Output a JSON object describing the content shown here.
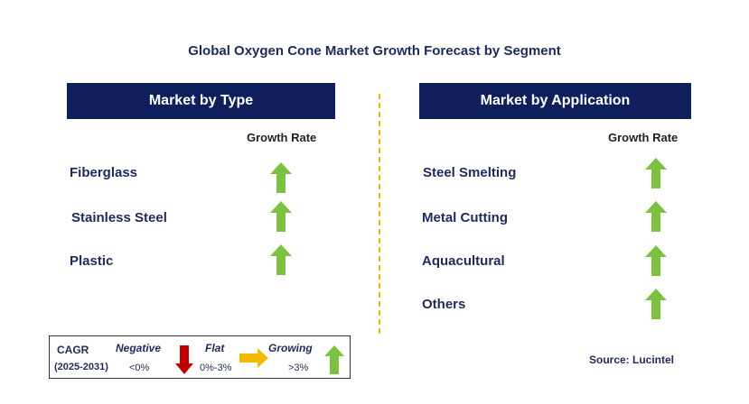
{
  "title": "Global Oxygen Cone Market Growth Forecast by Segment",
  "left_panel": {
    "header": "Market by Type",
    "growth_rate_label": "Growth Rate",
    "items": [
      {
        "label": "Fiberglass",
        "trend": "growing"
      },
      {
        "label": "Stainless Steel",
        "trend": "growing"
      },
      {
        "label": "Plastic",
        "trend": "growing"
      }
    ]
  },
  "right_panel": {
    "header": "Market by Application",
    "growth_rate_label": "Growth Rate",
    "items": [
      {
        "label": "Steel Smelting",
        "trend": "growing"
      },
      {
        "label": "Metal Cutting",
        "trend": "growing"
      },
      {
        "label": "Aquacultural",
        "trend": "growing"
      },
      {
        "label": "Others",
        "trend": "growing"
      }
    ]
  },
  "legend": {
    "cagr_label": "CAGR",
    "period": "(2025-2031)",
    "negative_label": "Negative",
    "negative_range": "<0%",
    "flat_label": "Flat",
    "flat_range": "0%-3%",
    "growing_label": "Growing",
    "growing_range": ">3%"
  },
  "source": "Source: Lucintel",
  "colors": {
    "header_bg": "#0e1f5b",
    "growing": "#7cc142",
    "negative": "#c00000",
    "flat": "#f5b800",
    "divider": "#f2b70f"
  }
}
